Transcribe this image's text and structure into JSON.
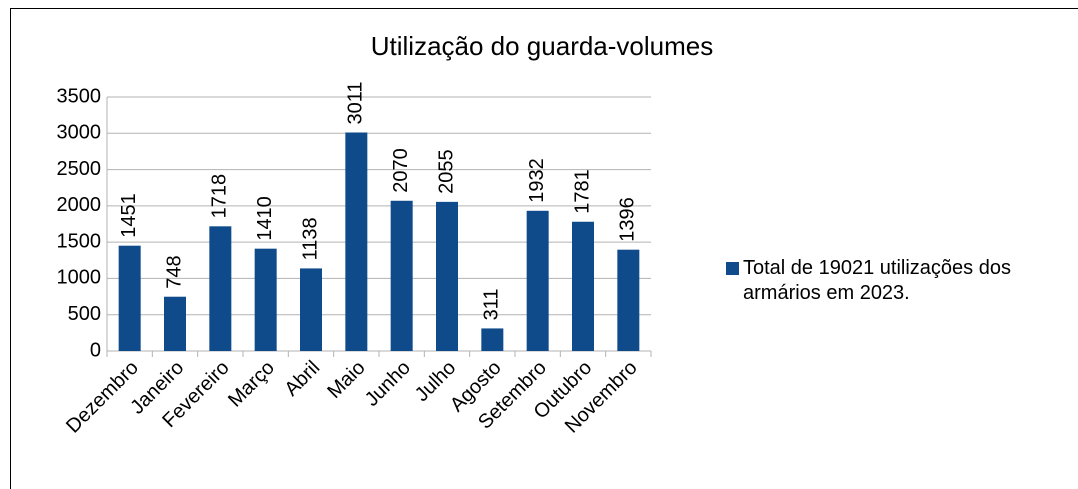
{
  "chart_data": {
    "type": "bar",
    "title": "Utilização do guarda-volumes",
    "categories": [
      "Dezembro",
      "Janeiro",
      "Fevereiro",
      "Março",
      "Abril",
      "Maio",
      "Junho",
      "Julho",
      "Agosto",
      "Setembro",
      "Outubro",
      "Novembro"
    ],
    "series": [
      {
        "name": "Total de 19021 utilizações dos  armários  em 2023.",
        "color": "#0f4a8a",
        "values": [
          1451,
          748,
          1718,
          1410,
          1138,
          3011,
          2070,
          2055,
          311,
          1932,
          1781,
          1396
        ]
      }
    ],
    "ylim": [
      0,
      3500
    ],
    "yticks": [
      0,
      500,
      1000,
      1500,
      2000,
      2500,
      3000,
      3500
    ],
    "grid": true,
    "legend": "right"
  }
}
